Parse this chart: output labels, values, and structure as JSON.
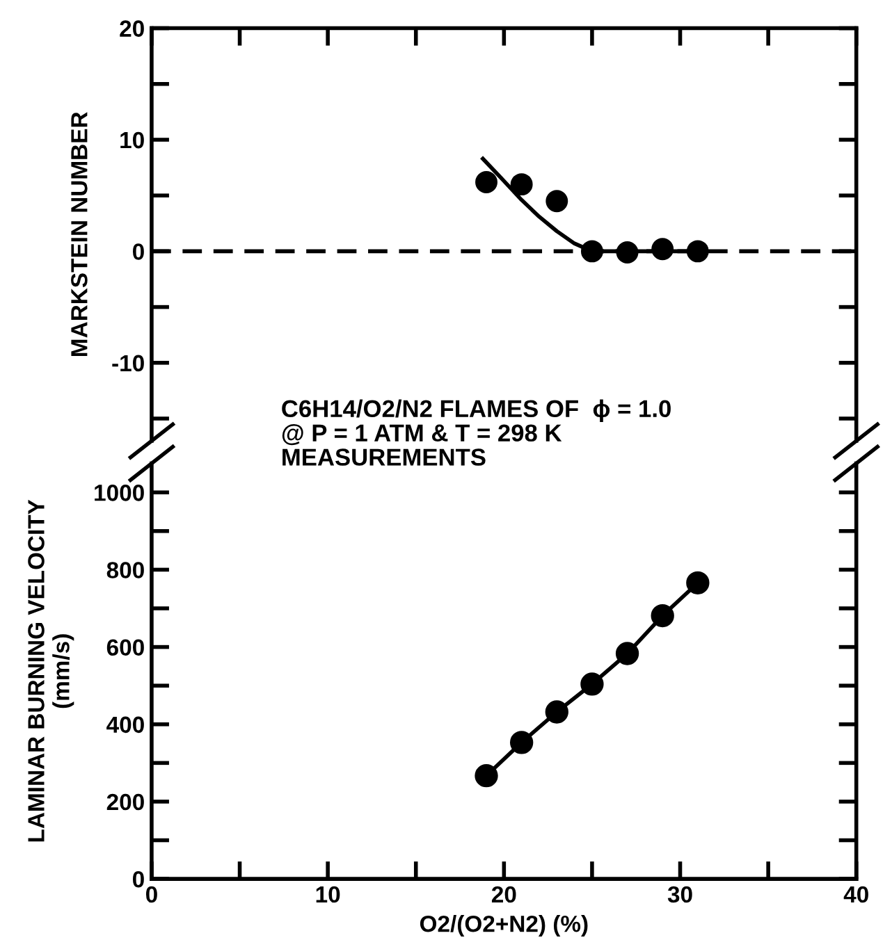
{
  "chart_data": [
    {
      "type": "scatter",
      "ylabel": "MARKSTEIN NUMBER",
      "xlim": [
        0,
        40
      ],
      "xticks": [
        0,
        5,
        10,
        15,
        20,
        25,
        30,
        35,
        40
      ],
      "ylim": [
        -17,
        20
      ],
      "yticks": [
        {
          "value": -15,
          "label": null
        },
        -10,
        {
          "value": -5,
          "label": null
        },
        0,
        {
          "value": 5,
          "label": null
        },
        10,
        {
          "value": 15,
          "label": null
        },
        20
      ],
      "tick_labels": "y",
      "grid": false,
      "marker": "circle",
      "series": [
        {
          "type": "scatter",
          "color": "#000000",
          "x": [
            19,
            21,
            23,
            25,
            27,
            29,
            31
          ],
          "values": [
            6.2,
            6.0,
            4.5,
            0.0,
            -0.1,
            0.2,
            0.0
          ]
        },
        {
          "type": "line",
          "color": "#000000",
          "marker": "none",
          "line_style": "solid",
          "x": [
            18.8,
            20,
            21,
            22,
            23,
            24,
            25,
            27,
            29,
            31
          ],
          "values": [
            8.3,
            6.3,
            4.6,
            3.1,
            1.8,
            0.7,
            0.0,
            0.0,
            0.0,
            0.0
          ]
        }
      ],
      "ref_lines": [
        {
          "axis": "y",
          "value": 0,
          "label": null,
          "color": "#000000",
          "line_style": "dashed"
        }
      ]
    },
    {
      "type": "line",
      "xlabel": "O2/(O2+N2) (%)",
      "ylabel": "LAMINAR BURNING VELOCITY\n(mm/s)",
      "xlim": [
        0,
        40
      ],
      "xticks": [
        0,
        {
          "value": 5,
          "label": null
        },
        10,
        {
          "value": 15,
          "label": null
        },
        20,
        {
          "value": 25,
          "label": null
        },
        30,
        {
          "value": 35,
          "label": null
        },
        40
      ],
      "ylim": [
        0,
        1075
      ],
      "yticks": [
        0,
        {
          "value": 100,
          "label": null
        },
        200,
        {
          "value": 300,
          "label": null
        },
        400,
        {
          "value": 500,
          "label": null
        },
        600,
        {
          "value": 700,
          "label": null
        },
        800,
        {
          "value": 900,
          "label": null
        },
        1000
      ],
      "grid": false,
      "marker": "circle",
      "line_style": "solid",
      "series": [
        {
          "color": "#000000",
          "x": [
            19,
            21,
            23,
            25,
            27,
            29,
            31
          ],
          "values": [
            267,
            353,
            432,
            504,
            583,
            681,
            766
          ]
        }
      ],
      "annotations": [
        "C6H14/O2/N2 FLAMES OF  ϕ = 1.0\n@ P = 1 ATM & T = 298 K\nMEASUREMENTS"
      ]
    }
  ]
}
